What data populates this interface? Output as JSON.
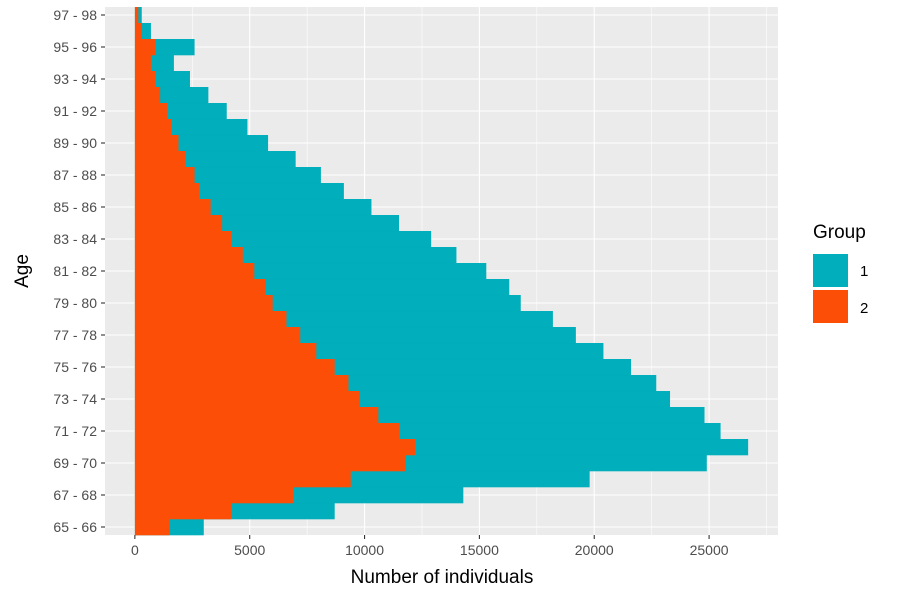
{
  "chart_data": {
    "type": "bar",
    "orientation": "horizontal",
    "stacking": "overlay",
    "xlabel": "Number of individuals",
    "ylabel": "Age",
    "xlim": [
      -1300,
      28000
    ],
    "xticks": [
      0,
      5000,
      10000,
      15000,
      20000,
      25000
    ],
    "xtick_labels": [
      "0",
      "5000",
      "10000",
      "15000",
      "20000",
      "25000"
    ],
    "ytick_every": 2,
    "grid": true,
    "panel_background": "#ebebeb",
    "legend": {
      "title": "Group",
      "position": "right"
    },
    "categories": [
      "65 - 66",
      "66 - 67",
      "67 - 68",
      "68 - 69",
      "69 - 70",
      "70 - 71",
      "71 - 72",
      "72 - 73",
      "73 - 74",
      "74 - 75",
      "75 - 76",
      "76 - 77",
      "77 - 78",
      "78 - 79",
      "79 - 80",
      "80 - 81",
      "81 - 82",
      "82 - 83",
      "83 - 84",
      "84 - 85",
      "85 - 86",
      "86 - 87",
      "87 - 88",
      "88 - 89",
      "89 - 90",
      "90 - 91",
      "91 - 92",
      "92 - 93",
      "93 - 94",
      "94 - 95",
      "95 - 96",
      "96 - 97",
      "97 - 98"
    ],
    "series": [
      {
        "name": "1",
        "color": "#00afbb",
        "values": [
          3000,
          8700,
          14300,
          19800,
          24900,
          26700,
          25500,
          24800,
          23300,
          22700,
          21600,
          20400,
          19200,
          18200,
          16800,
          16300,
          15300,
          14000,
          12900,
          11500,
          10300,
          9100,
          8100,
          7000,
          5800,
          4900,
          4000,
          3200,
          2400,
          1700,
          2600,
          700,
          300
        ]
      },
      {
        "name": "2",
        "color": "#fc4e07",
        "values": [
          1500,
          4200,
          6900,
          9400,
          11800,
          12200,
          11500,
          10600,
          9800,
          9300,
          8700,
          7900,
          7200,
          6600,
          6000,
          5700,
          5200,
          4700,
          4200,
          3800,
          3300,
          2800,
          2600,
          2200,
          1900,
          1600,
          1400,
          1100,
          900,
          700,
          900,
          300,
          150
        ]
      }
    ]
  }
}
